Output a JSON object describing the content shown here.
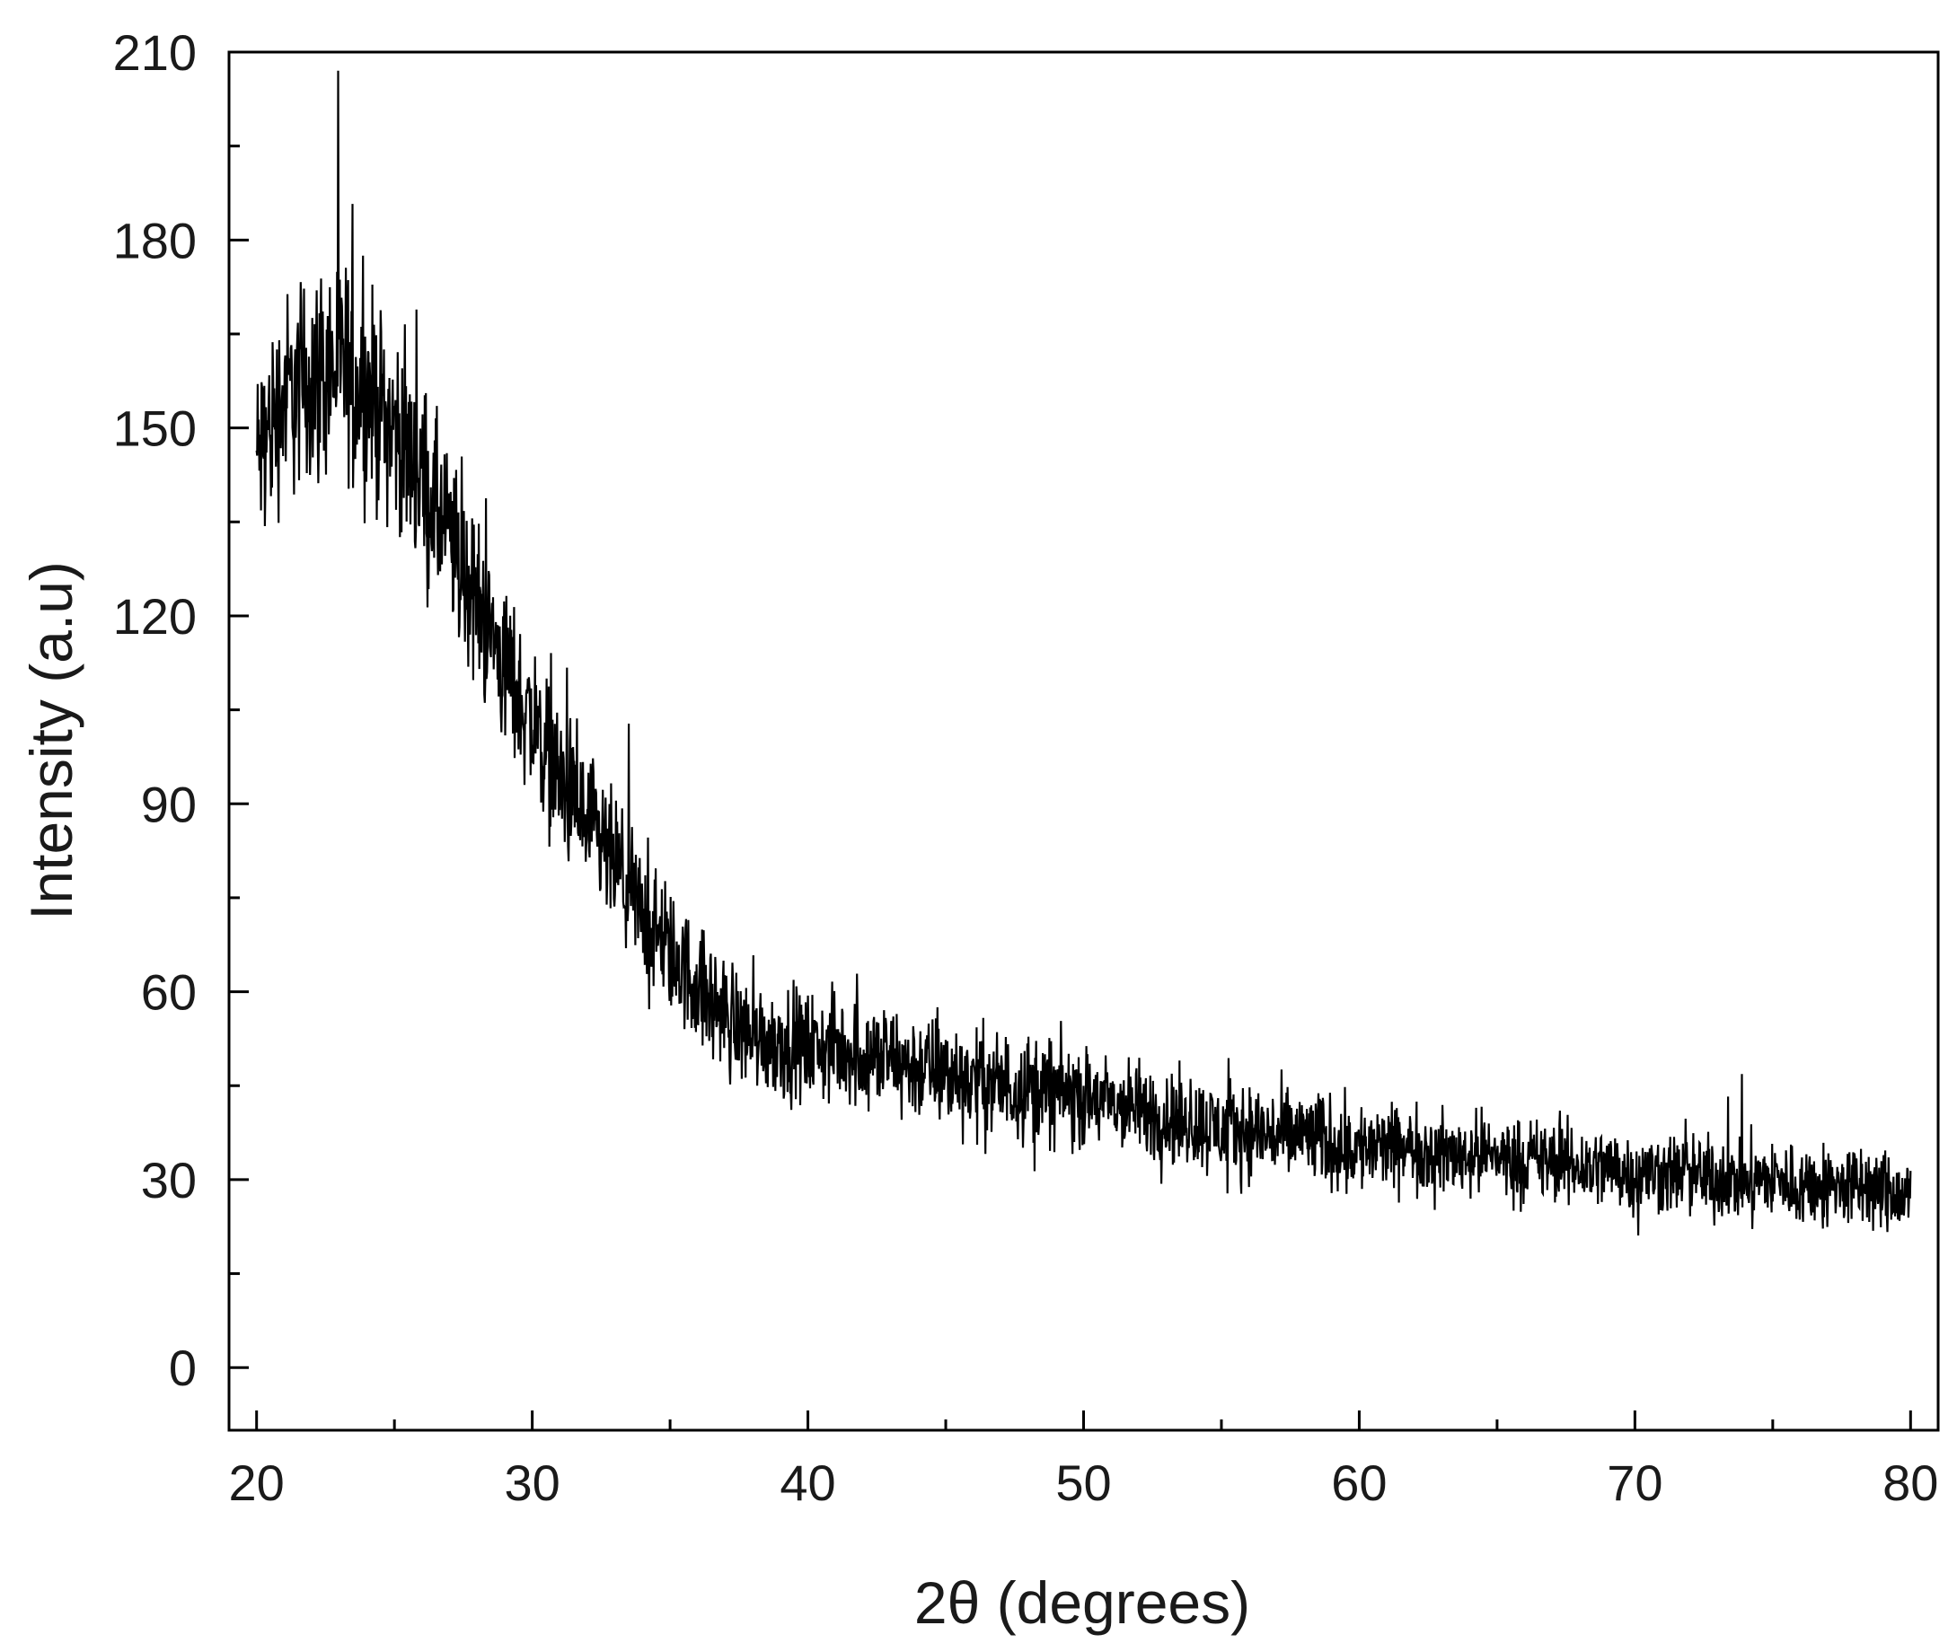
{
  "chart_data": {
    "type": "line",
    "title": "",
    "xlabel": "2θ (degrees)",
    "ylabel": "Intensity  (a.u)",
    "xlim": [
      19,
      81
    ],
    "ylim": [
      -10,
      210
    ],
    "xticks": [
      20,
      30,
      40,
      50,
      60,
      70,
      80
    ],
    "xtick_labels": [
      "20",
      "30",
      "40",
      "50",
      "60",
      "70",
      "80"
    ],
    "yticks": [
      0,
      30,
      60,
      90,
      120,
      150,
      180,
      210
    ],
    "ytick_labels": [
      "0",
      "30",
      "60",
      "90",
      "120",
      "150",
      "180",
      "210"
    ],
    "grid": false,
    "legend": "none",
    "line_color": "#000000",
    "series": [
      {
        "x": [
          20,
          21,
          22,
          23,
          24,
          25,
          26,
          27,
          28,
          29,
          30,
          31,
          32,
          33,
          34,
          35,
          36,
          37,
          38,
          39,
          40,
          41,
          42,
          43,
          44,
          45,
          46,
          47,
          48,
          49,
          50,
          51,
          52,
          53,
          54,
          55,
          56,
          57,
          58,
          59,
          60,
          61,
          62,
          63,
          64,
          65,
          66,
          67,
          68,
          69,
          70,
          71,
          72,
          73,
          74,
          75,
          76,
          77,
          78,
          79,
          80
        ],
        "y": [
          145,
          155,
          158,
          160,
          156,
          150,
          142,
          132,
          122,
          112,
          103,
          94,
          86,
          80,
          72,
          66,
          61,
          56,
          53,
          52,
          51,
          51,
          50,
          49,
          48,
          47,
          46,
          45,
          45,
          44,
          43,
          42,
          41,
          40,
          39,
          38,
          38,
          37,
          37,
          36,
          35,
          35,
          35,
          34,
          34,
          34,
          33,
          33,
          32,
          32,
          31,
          31,
          31,
          30,
          30,
          30,
          29,
          29,
          29,
          28,
          27
        ],
        "noise": [
          14,
          15,
          16,
          16,
          15,
          14,
          14,
          13,
          12,
          12,
          11,
          11,
          11,
          10,
          10,
          9,
          9,
          9,
          8,
          8,
          8,
          8,
          8,
          8,
          8,
          8,
          8,
          8,
          8,
          8,
          7,
          7,
          7,
          7,
          7,
          7,
          7,
          7,
          7,
          7,
          7,
          6,
          6,
          6,
          6,
          6,
          6,
          6,
          6,
          6,
          6,
          6,
          6,
          6,
          6,
          6,
          6,
          6,
          6,
          6,
          6
        ]
      }
    ]
  }
}
